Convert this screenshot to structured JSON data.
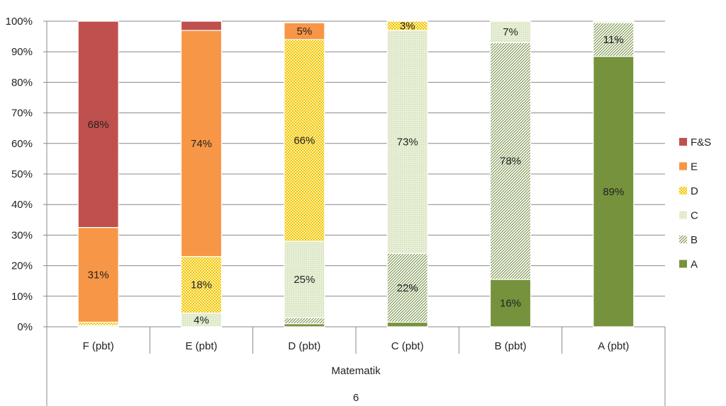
{
  "chart_data": {
    "type": "bar",
    "stacked": true,
    "percent_stacked": true,
    "categories": [
      "F (pbt)",
      "E (pbt)",
      "D (pbt)",
      "C (pbt)",
      "B (pbt)",
      "A (pbt)"
    ],
    "group_labels": [
      "Matematik",
      "6"
    ],
    "yticks": [
      "0%",
      "10%",
      "20%",
      "30%",
      "40%",
      "50%",
      "60%",
      "70%",
      "80%",
      "90%",
      "100%"
    ],
    "ylim": [
      0,
      100
    ],
    "grid": true,
    "legend_position": "right",
    "series": [
      {
        "name": "A",
        "color": "#76923c",
        "pattern": "solid",
        "values": [
          0,
          0,
          1,
          1.5,
          15.5,
          88.5
        ]
      },
      {
        "name": "B",
        "color": "#d7e4bd",
        "pattern": "diag-hatch",
        "values": [
          0,
          0,
          2,
          22.5,
          77.5,
          11
        ]
      },
      {
        "name": "C",
        "color": "#ebf1de",
        "pattern": "light-dots",
        "values": [
          0.5,
          4.5,
          25,
          73,
          7,
          0.5
        ]
      },
      {
        "name": "D",
        "color": "#ffd966",
        "pattern": "check",
        "values": [
          1,
          18.5,
          66,
          3,
          0,
          0
        ]
      },
      {
        "name": "E",
        "color": "#f79646",
        "pattern": "solid",
        "values": [
          31,
          74,
          5.5,
          0,
          0,
          0
        ]
      },
      {
        "name": "F&S",
        "color": "#c0504d",
        "pattern": "solid",
        "values": [
          67.5,
          3,
          0,
          0,
          0,
          0
        ]
      }
    ],
    "data_labels": [
      {
        "category": 0,
        "series": "E",
        "text": "31%"
      },
      {
        "category": 0,
        "series": "F&S",
        "text": "68%"
      },
      {
        "category": 1,
        "series": "C",
        "text": "4%"
      },
      {
        "category": 1,
        "series": "D",
        "text": "18%"
      },
      {
        "category": 1,
        "series": "E",
        "text": "74%"
      },
      {
        "category": 2,
        "series": "C",
        "text": "25%"
      },
      {
        "category": 2,
        "series": "D",
        "text": "66%"
      },
      {
        "category": 2,
        "series": "E",
        "text": "5%"
      },
      {
        "category": 3,
        "series": "B",
        "text": "22%"
      },
      {
        "category": 3,
        "series": "C",
        "text": "73%"
      },
      {
        "category": 3,
        "series": "D",
        "text": "3%"
      },
      {
        "category": 4,
        "series": "A",
        "text": "16%"
      },
      {
        "category": 4,
        "series": "B",
        "text": "78%"
      },
      {
        "category": 4,
        "series": "C",
        "text": "7%"
      },
      {
        "category": 5,
        "series": "A",
        "text": "89%"
      },
      {
        "category": 5,
        "series": "B",
        "text": "11%"
      }
    ],
    "legend_order": [
      "F&S",
      "E",
      "D",
      "C",
      "B",
      "A"
    ]
  }
}
